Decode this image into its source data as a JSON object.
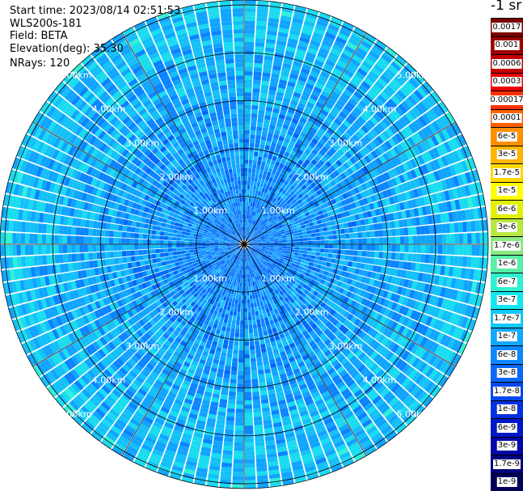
{
  "header": {
    "start_time": "Start time: 2023/08/14 02:51:53",
    "instrument": "WLS200s-181",
    "field": "Field: BETA",
    "elevation": "Elevation(deg): 35.30",
    "nrays": "NRays: 120"
  },
  "units_label": "-1 sr",
  "colorbar": {
    "labels": [
      "0.0017",
      "0.001",
      "0.0006",
      "0.0003",
      "0.00017",
      "0.0001",
      "6e-5",
      "3e-5",
      "1.7e-5",
      "1e-5",
      "6e-6",
      "3e-6",
      "1.7e-6",
      "1e-6",
      "6e-7",
      "3e-7",
      "1.7e-7",
      "1e-7",
      "6e-8",
      "3e-8",
      "1.7e-8",
      "1e-8",
      "6e-9",
      "3e-9",
      "1.7e-9",
      "1e-9"
    ],
    "colors": [
      "#7a0000",
      "#9c0000",
      "#c40000",
      "#e80000",
      "#ff3000",
      "#ff6000",
      "#ff8f00",
      "#ffb400",
      "#ffd800",
      "#ffff00",
      "#e0f000",
      "#b8e840",
      "#8ae880",
      "#58f0a8",
      "#30f0d0",
      "#10e8f0",
      "#10c8f8",
      "#10a8ff",
      "#0c88ff",
      "#0868f8",
      "#0448f0",
      "#0030e0",
      "#0018c8",
      "#0008a8",
      "#000080",
      "#000058"
    ]
  },
  "chart_data": {
    "type": "ppi",
    "title": "",
    "rings": [
      {
        "range_km": 1,
        "label": "1.00km"
      },
      {
        "range_km": 2,
        "label": "2.00km"
      },
      {
        "range_km": 3,
        "label": "3.00km"
      },
      {
        "range_km": 4,
        "label": "4.00km"
      },
      {
        "range_km": 5,
        "label": "5.00km"
      }
    ],
    "ring_label_azimuths_deg": [
      315,
      45,
      225,
      135
    ],
    "max_range_km": 5.1,
    "n_rays": 120,
    "field": "BETA",
    "elevation_deg": 35.3,
    "colorscale": "log",
    "value_range": [
      1e-09,
      0.0017
    ],
    "dominant_values": [
      "6e-8",
      "3e-8",
      "1.7e-8",
      "1e-7"
    ]
  }
}
